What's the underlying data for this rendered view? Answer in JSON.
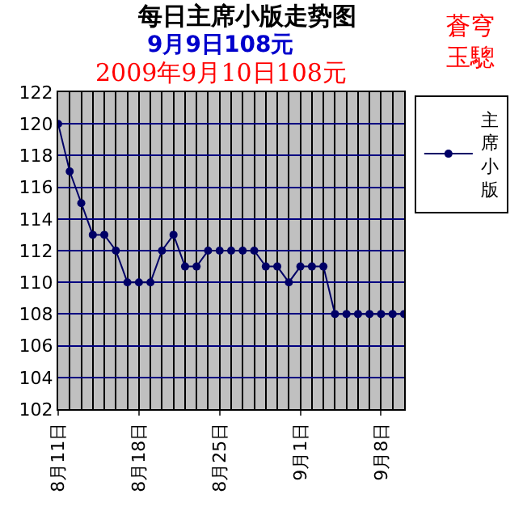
{
  "chart_data": {
    "type": "line",
    "title": "每日主席小版走势图",
    "subtitle": "9月9日108元",
    "annotations": [
      "2009年9月10日108元",
      "蒼穹玉驄"
    ],
    "x": [
      "--08-11",
      "--08-12",
      "--08-13",
      "--08-14",
      "--08-15",
      "--08-16",
      "--08-17",
      "--08-18",
      "--08-19",
      "--08-20",
      "--08-21",
      "--08-22",
      "--08-23",
      "--08-24",
      "--08-25",
      "--08-26",
      "--08-27",
      "--08-28",
      "--08-29",
      "--08-30",
      "--08-31",
      "--09-01",
      "--09-02",
      "--09-03",
      "--09-04",
      "--09-05",
      "--09-06",
      "--09-07",
      "--09-08",
      "--09-09",
      "--09-10"
    ],
    "series": [
      {
        "name": "主席小版",
        "color": "#000066",
        "values": [
          120,
          117,
          115,
          113,
          113,
          112,
          110,
          110,
          110,
          112,
          113,
          111,
          111,
          112,
          112,
          112,
          112,
          112,
          111,
          111,
          110,
          111,
          111,
          111,
          108,
          108,
          108,
          108,
          108,
          108,
          108
        ]
      }
    ],
    "xlim": [
      "--08-11",
      "--09-10"
    ],
    "xticks": [
      {
        "value": "--08-11",
        "label": "8月11日"
      },
      {
        "value": "--08-18",
        "label": "8月18日"
      },
      {
        "value": "--08-25",
        "label": "8月25日"
      },
      {
        "value": "--09-01",
        "label": "9月1日"
      },
      {
        "value": "--09-08",
        "label": "9月8日"
      }
    ],
    "ylim": [
      102,
      122
    ],
    "yticks": [
      102,
      104,
      106,
      108,
      110,
      112,
      114,
      116,
      118,
      120,
      122
    ],
    "grid": true,
    "legend": "top right",
    "marker": "circle",
    "line_style": "solid"
  }
}
